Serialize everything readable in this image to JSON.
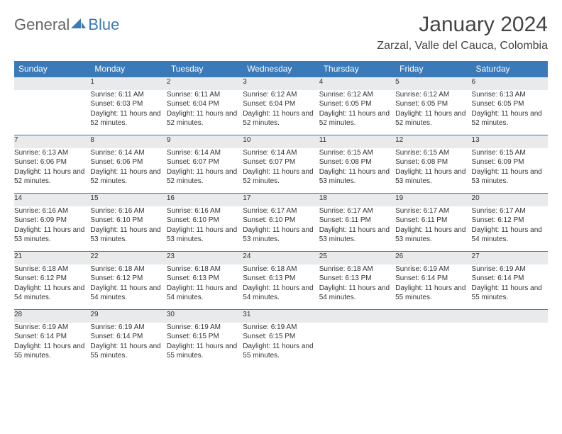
{
  "brand": {
    "part1": "General",
    "part2": "Blue"
  },
  "title": "January 2024",
  "location": "Zarzal, Valle del Cauca, Colombia",
  "colors": {
    "header_bg": "#3a7ab8",
    "daynum_bg": "#e9eaeb",
    "row_divider": "#3a7ab8",
    "text": "#333333",
    "title_text": "#444444"
  },
  "weekdays": [
    "Sunday",
    "Monday",
    "Tuesday",
    "Wednesday",
    "Thursday",
    "Friday",
    "Saturday"
  ],
  "weeks": [
    [
      null,
      {
        "n": "1",
        "sr": "Sunrise: 6:11 AM",
        "ss": "Sunset: 6:03 PM",
        "dl": "Daylight: 11 hours and 52 minutes."
      },
      {
        "n": "2",
        "sr": "Sunrise: 6:11 AM",
        "ss": "Sunset: 6:04 PM",
        "dl": "Daylight: 11 hours and 52 minutes."
      },
      {
        "n": "3",
        "sr": "Sunrise: 6:12 AM",
        "ss": "Sunset: 6:04 PM",
        "dl": "Daylight: 11 hours and 52 minutes."
      },
      {
        "n": "4",
        "sr": "Sunrise: 6:12 AM",
        "ss": "Sunset: 6:05 PM",
        "dl": "Daylight: 11 hours and 52 minutes."
      },
      {
        "n": "5",
        "sr": "Sunrise: 6:12 AM",
        "ss": "Sunset: 6:05 PM",
        "dl": "Daylight: 11 hours and 52 minutes."
      },
      {
        "n": "6",
        "sr": "Sunrise: 6:13 AM",
        "ss": "Sunset: 6:05 PM",
        "dl": "Daylight: 11 hours and 52 minutes."
      }
    ],
    [
      {
        "n": "7",
        "sr": "Sunrise: 6:13 AM",
        "ss": "Sunset: 6:06 PM",
        "dl": "Daylight: 11 hours and 52 minutes."
      },
      {
        "n": "8",
        "sr": "Sunrise: 6:14 AM",
        "ss": "Sunset: 6:06 PM",
        "dl": "Daylight: 11 hours and 52 minutes."
      },
      {
        "n": "9",
        "sr": "Sunrise: 6:14 AM",
        "ss": "Sunset: 6:07 PM",
        "dl": "Daylight: 11 hours and 52 minutes."
      },
      {
        "n": "10",
        "sr": "Sunrise: 6:14 AM",
        "ss": "Sunset: 6:07 PM",
        "dl": "Daylight: 11 hours and 52 minutes."
      },
      {
        "n": "11",
        "sr": "Sunrise: 6:15 AM",
        "ss": "Sunset: 6:08 PM",
        "dl": "Daylight: 11 hours and 53 minutes."
      },
      {
        "n": "12",
        "sr": "Sunrise: 6:15 AM",
        "ss": "Sunset: 6:08 PM",
        "dl": "Daylight: 11 hours and 53 minutes."
      },
      {
        "n": "13",
        "sr": "Sunrise: 6:15 AM",
        "ss": "Sunset: 6:09 PM",
        "dl": "Daylight: 11 hours and 53 minutes."
      }
    ],
    [
      {
        "n": "14",
        "sr": "Sunrise: 6:16 AM",
        "ss": "Sunset: 6:09 PM",
        "dl": "Daylight: 11 hours and 53 minutes."
      },
      {
        "n": "15",
        "sr": "Sunrise: 6:16 AM",
        "ss": "Sunset: 6:10 PM",
        "dl": "Daylight: 11 hours and 53 minutes."
      },
      {
        "n": "16",
        "sr": "Sunrise: 6:16 AM",
        "ss": "Sunset: 6:10 PM",
        "dl": "Daylight: 11 hours and 53 minutes."
      },
      {
        "n": "17",
        "sr": "Sunrise: 6:17 AM",
        "ss": "Sunset: 6:10 PM",
        "dl": "Daylight: 11 hours and 53 minutes."
      },
      {
        "n": "18",
        "sr": "Sunrise: 6:17 AM",
        "ss": "Sunset: 6:11 PM",
        "dl": "Daylight: 11 hours and 53 minutes."
      },
      {
        "n": "19",
        "sr": "Sunrise: 6:17 AM",
        "ss": "Sunset: 6:11 PM",
        "dl": "Daylight: 11 hours and 53 minutes."
      },
      {
        "n": "20",
        "sr": "Sunrise: 6:17 AM",
        "ss": "Sunset: 6:12 PM",
        "dl": "Daylight: 11 hours and 54 minutes."
      }
    ],
    [
      {
        "n": "21",
        "sr": "Sunrise: 6:18 AM",
        "ss": "Sunset: 6:12 PM",
        "dl": "Daylight: 11 hours and 54 minutes."
      },
      {
        "n": "22",
        "sr": "Sunrise: 6:18 AM",
        "ss": "Sunset: 6:12 PM",
        "dl": "Daylight: 11 hours and 54 minutes."
      },
      {
        "n": "23",
        "sr": "Sunrise: 6:18 AM",
        "ss": "Sunset: 6:13 PM",
        "dl": "Daylight: 11 hours and 54 minutes."
      },
      {
        "n": "24",
        "sr": "Sunrise: 6:18 AM",
        "ss": "Sunset: 6:13 PM",
        "dl": "Daylight: 11 hours and 54 minutes."
      },
      {
        "n": "25",
        "sr": "Sunrise: 6:18 AM",
        "ss": "Sunset: 6:13 PM",
        "dl": "Daylight: 11 hours and 54 minutes."
      },
      {
        "n": "26",
        "sr": "Sunrise: 6:19 AM",
        "ss": "Sunset: 6:14 PM",
        "dl": "Daylight: 11 hours and 55 minutes."
      },
      {
        "n": "27",
        "sr": "Sunrise: 6:19 AM",
        "ss": "Sunset: 6:14 PM",
        "dl": "Daylight: 11 hours and 55 minutes."
      }
    ],
    [
      {
        "n": "28",
        "sr": "Sunrise: 6:19 AM",
        "ss": "Sunset: 6:14 PM",
        "dl": "Daylight: 11 hours and 55 minutes."
      },
      {
        "n": "29",
        "sr": "Sunrise: 6:19 AM",
        "ss": "Sunset: 6:14 PM",
        "dl": "Daylight: 11 hours and 55 minutes."
      },
      {
        "n": "30",
        "sr": "Sunrise: 6:19 AM",
        "ss": "Sunset: 6:15 PM",
        "dl": "Daylight: 11 hours and 55 minutes."
      },
      {
        "n": "31",
        "sr": "Sunrise: 6:19 AM",
        "ss": "Sunset: 6:15 PM",
        "dl": "Daylight: 11 hours and 55 minutes."
      },
      null,
      null,
      null
    ]
  ]
}
